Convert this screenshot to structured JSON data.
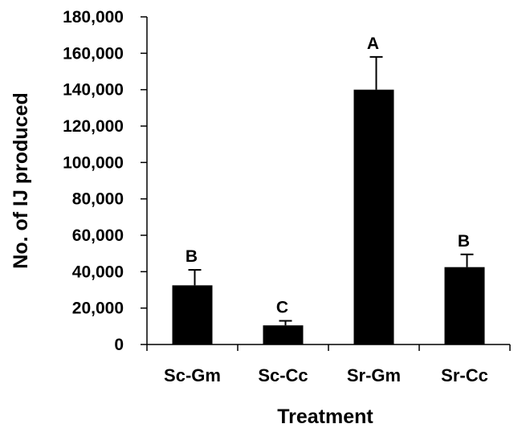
{
  "chart_data": {
    "type": "bar",
    "categories": [
      "Sc-Gm",
      "Sc-Cc",
      "Sr-Gm",
      "Sr-Cc"
    ],
    "values": [
      32500,
      10500,
      140000,
      42500
    ],
    "error_upper": [
      41000,
      13000,
      158000,
      49500
    ],
    "significance_letters": [
      "B",
      "C",
      "A",
      "B"
    ],
    "title": "",
    "xlabel": "Treatment",
    "ylabel": "No. of  IJ produced",
    "ylim": [
      0,
      180000
    ],
    "yticks": [
      0,
      20000,
      40000,
      60000,
      80000,
      100000,
      120000,
      140000,
      160000,
      180000
    ],
    "ytick_labels": [
      "0",
      "20,000",
      "40,000",
      "60,000",
      "80,000",
      "100,000",
      "120,000",
      "140,000",
      "160,000",
      "180,000"
    ],
    "grid": false,
    "bar_color": "#000000"
  }
}
